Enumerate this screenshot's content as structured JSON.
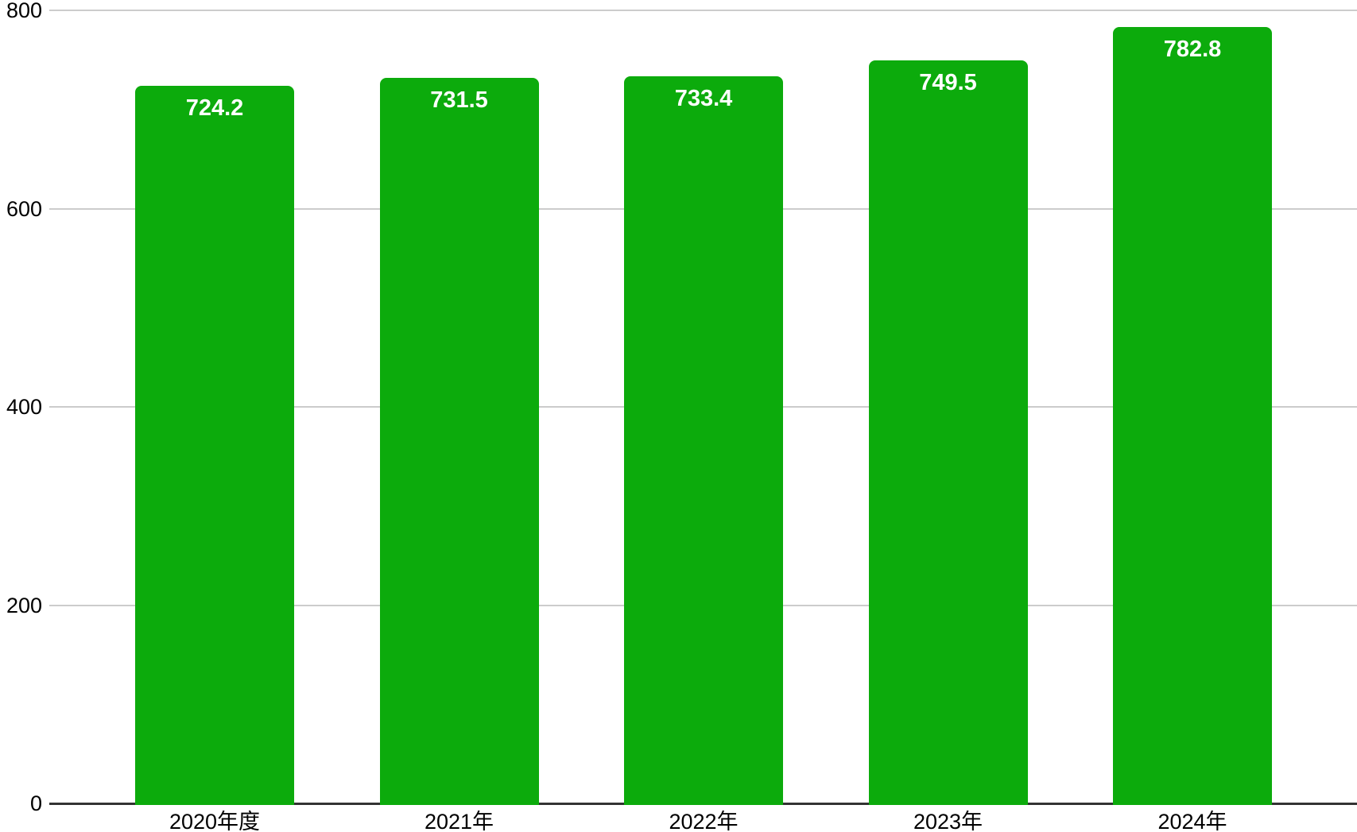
{
  "chart_data": {
    "type": "bar",
    "categories": [
      "2020年度",
      "2021年",
      "2022年",
      "2023年",
      "2024年"
    ],
    "values": [
      724.2,
      731.5,
      733.4,
      749.5,
      782.8
    ],
    "value_labels": [
      "724.2",
      "731.5",
      "733.4",
      "749.5",
      "782.8"
    ],
    "title": "",
    "xlabel": "",
    "ylabel": "",
    "ylim": [
      0,
      800
    ],
    "yticks": [
      0,
      200,
      400,
      600,
      800
    ],
    "ytick_labels": [
      "0",
      "200",
      "400",
      "600",
      "800"
    ],
    "grid": true,
    "legend": "none",
    "colors": {
      "bar": "#0cab0c",
      "bar_value_label": "#ffffff",
      "gridline": "#cccccc",
      "axis_line": "#333333",
      "tick_label": "#000000",
      "background": "#ffffff"
    }
  }
}
